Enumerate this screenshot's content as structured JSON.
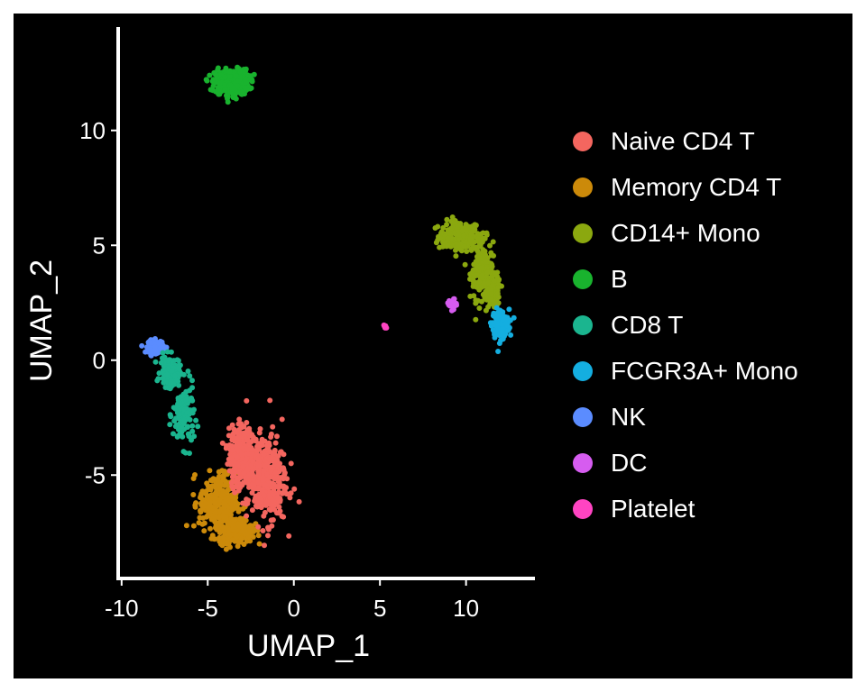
{
  "chart_data": {
    "type": "scatter",
    "xlabel": "UMAP_1",
    "ylabel": "UMAP_2",
    "xlim": [
      -10.2,
      14
    ],
    "ylim": [
      -9.5,
      14.5
    ],
    "xticks": [
      -10,
      -5,
      0,
      5,
      10
    ],
    "xtick_labels": [
      "-10",
      "-5",
      "0",
      "5",
      "10"
    ],
    "yticks": [
      -5,
      0,
      5,
      10
    ],
    "ytick_labels": [
      "-5",
      "0",
      "5",
      "10"
    ],
    "background": "#000000",
    "axis_color": "#ffffff",
    "legend_position": "right",
    "series": [
      {
        "name": "Naive CD4 T",
        "color": "#F8766D",
        "n_points": 700,
        "clusters": [
          {
            "x": -1.6,
            "y": -5.2,
            "sx": 1.05,
            "sy": 1.75
          },
          {
            "x": -3.0,
            "y": -4.2,
            "sx": 0.7,
            "sy": 1.2
          }
        ]
      },
      {
        "name": "Memory CD4 T",
        "color": "#CD9600",
        "n_points": 550,
        "clusters": [
          {
            "x": -4.4,
            "y": -6.2,
            "sx": 1.0,
            "sy": 1.2
          },
          {
            "x": -3.4,
            "y": -7.4,
            "sx": 0.9,
            "sy": 0.5
          }
        ]
      },
      {
        "name": "CD14+ Mono",
        "color": "#7CAE00",
        "n_points": 500,
        "clusters": [
          {
            "x": 9.6,
            "y": 5.4,
            "sx": 1.1,
            "sy": 0.6
          },
          {
            "x": 10.9,
            "y": 4.0,
            "sx": 0.6,
            "sy": 1.2
          },
          {
            "x": 11.6,
            "y": 3.0,
            "sx": 0.35,
            "sy": 0.6
          }
        ]
      },
      {
        "name": "B",
        "color": "#00BE67",
        "n_points": 350,
        "clusters": [
          {
            "x": -3.6,
            "y": 12.1,
            "sx": 0.9,
            "sy": 0.5
          }
        ]
      },
      {
        "name": "CD8 T",
        "color": "#00BFC4",
        "n_points": 260,
        "clusters": [
          {
            "x": -6.4,
            "y": -2.4,
            "sx": 0.55,
            "sy": 1.2
          },
          {
            "x": -7.2,
            "y": -0.5,
            "sx": 0.5,
            "sy": 0.6
          }
        ]
      },
      {
        "name": "FCGR3A+ Mono",
        "color": "#00A9FF",
        "n_points": 180,
        "clusters": [
          {
            "x": 12.0,
            "y": 1.6,
            "sx": 0.45,
            "sy": 0.55
          }
        ]
      },
      {
        "name": "NK",
        "color": "#8494FF",
        "n_points": 150,
        "clusters": [
          {
            "x": -8.0,
            "y": 0.6,
            "sx": 0.4,
            "sy": 0.25
          }
        ]
      },
      {
        "name": "DC",
        "color": "#E68613",
        "n_points": 18,
        "clusters": [
          {
            "x": 9.2,
            "y": 2.4,
            "sx": 0.25,
            "sy": 0.25
          }
        ]
      },
      {
        "name": "Platelet",
        "color": "#FF61CC",
        "n_points": 8,
        "clusters": [
          {
            "x": 5.3,
            "y": 1.45,
            "sx": 0.06,
            "sy": 0.06
          }
        ]
      }
    ]
  }
}
